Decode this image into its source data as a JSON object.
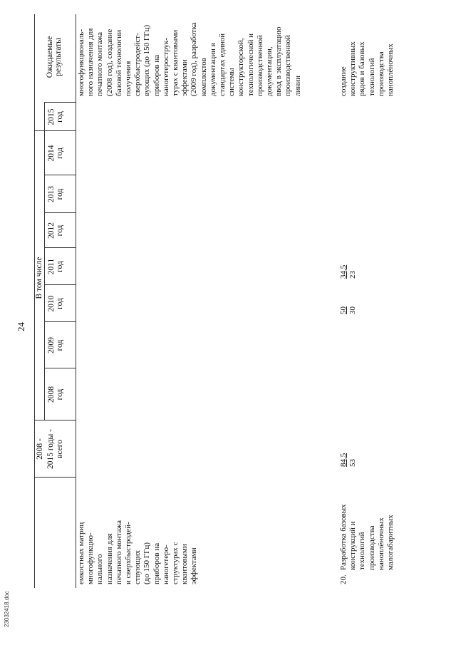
{
  "page_number": "24",
  "header": {
    "period_total": "2008 - 2015 годы - всего",
    "period_range_top": "2008 -",
    "period_range_mid": "2015 годы -",
    "period_range_bot": "всего",
    "in_that_number": "В том числе",
    "years": [
      {
        "year": "2008",
        "unit": "год"
      },
      {
        "year": "2009",
        "unit": "год"
      },
      {
        "year": "2010",
        "unit": "год"
      },
      {
        "year": "2011",
        "unit": "год"
      },
      {
        "year": "2012",
        "unit": "год"
      },
      {
        "year": "2013",
        "unit": "год"
      },
      {
        "year": "2014",
        "unit": "год"
      },
      {
        "year": "2015",
        "unit": "год"
      }
    ],
    "expected_results_line1": "Ожидаемые",
    "expected_results_line2": "результаты"
  },
  "row_continued": {
    "name_lines": [
      "емкостных матриц",
      "многофункцио-",
      "нального",
      "назначения для",
      "печатного монтажа",
      "и сверхбыстродей-",
      "ствующих",
      "(до 150 ГГц)",
      "приборов на",
      "наногетеро-",
      "структурах с",
      "квантовыми",
      "эффектами"
    ],
    "results_lines": [
      "многофункциональ-",
      "ного назначения для",
      "печатного монтажа",
      "(2008 год), создание",
      "базовой технологии",
      "получения",
      "сверхбыстродейст-",
      "вующих (до 150 ГГц)",
      "приборов на",
      "наногетерострук-",
      "турах с квантовыми",
      "эффектами",
      "(2009 год), разработка",
      "комплектов",
      "документации в",
      "стандартах единой",
      "системы",
      "конструкторской,",
      "технологической и",
      "производственной",
      "документации,",
      "ввод в эксплуатацию",
      "производственной",
      "линии"
    ]
  },
  "row_20": {
    "number": "20.",
    "name_lines": [
      "Разработка базовых",
      "конструкций и",
      "технологий",
      "производства",
      "наноплёночных",
      "малогабаритных"
    ],
    "total_top": "84,5",
    "total_bottom": "53",
    "y2010_top": "50",
    "y2010_bottom": "30",
    "y2011_top": "34,5",
    "y2011_bottom": "23",
    "results_lines": [
      "создание",
      "конструктивных",
      "рядов и базовых",
      "технологий",
      "производства",
      "наноплёночных"
    ]
  },
  "footer": {
    "file_name": "23032418.doc"
  }
}
